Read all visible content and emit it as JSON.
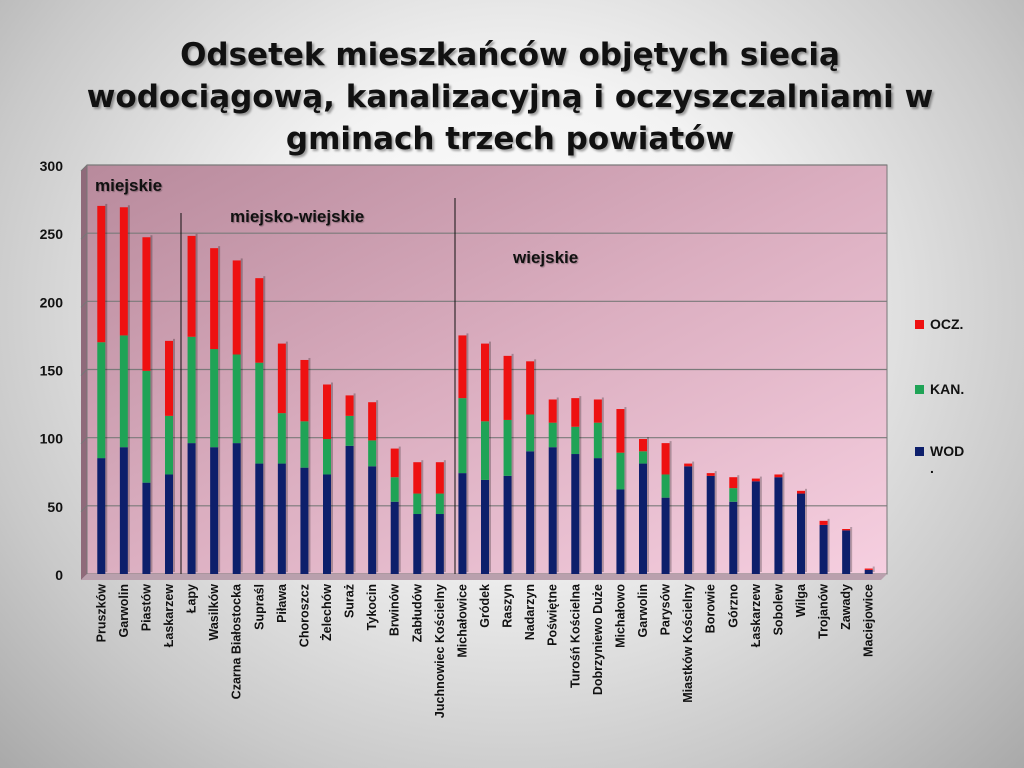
{
  "title": "Odsetek mieszkańców objętych siecią wodociągową, kanalizacyjną i oczyszczalniami w gminach trzech powiatów",
  "chart_data": {
    "type": "bar",
    "stacked": true,
    "categories": [
      "Pruszków",
      "Garwolin",
      "Piastów",
      "Łaskarzew",
      "Łapy",
      "Wasilków",
      "Czarna Białostocka",
      "Supraśl",
      "Piława",
      "Choroszcz",
      "Żelechów",
      "Suraż",
      "Tykocin",
      "Brwinów",
      "Zabłudów",
      "Juchnowiec Kościelny",
      "Michałowice",
      "Gródek",
      "Raszyn",
      "Nadarzyn",
      "Poświętne",
      "Turośń Kościelna",
      "Dobrzyniewo Duże",
      "Michałowo",
      "Garwolin",
      "Parysów",
      "Miastków Kościelny",
      "Borowie",
      "Górzno",
      "Łaskarzew",
      "Sobolew",
      "Wilga",
      "Trojanów",
      "Zawady",
      "Maciejowice"
    ],
    "series": [
      {
        "name": "WOD.",
        "color": "#0d1f6b",
        "values": [
          85,
          93,
          67,
          73,
          96,
          93,
          96,
          81,
          81,
          78,
          73,
          94,
          79,
          53,
          44,
          44,
          74,
          69,
          72,
          90,
          93,
          88,
          85,
          62,
          81,
          56,
          79,
          72,
          53,
          68,
          71,
          59,
          36,
          32,
          3
        ]
      },
      {
        "name": "KAN.",
        "color": "#1fa356",
        "values": [
          85,
          82,
          82,
          43,
          78,
          72,
          65,
          74,
          37,
          34,
          26,
          22,
          19,
          18,
          15,
          15,
          55,
          43,
          41,
          27,
          18,
          20,
          26,
          27,
          9,
          17,
          0,
          0,
          10,
          0,
          0,
          0,
          0,
          0,
          0
        ]
      },
      {
        "name": "OCZ.",
        "color": "#ee1111",
        "values": [
          100,
          94,
          98,
          55,
          74,
          74,
          69,
          62,
          51,
          45,
          40,
          15,
          28,
          21,
          23,
          23,
          46,
          57,
          47,
          39,
          17,
          21,
          17,
          32,
          9,
          23,
          2,
          2,
          8,
          2,
          2,
          2,
          3,
          1,
          1
        ]
      }
    ],
    "ylim": [
      0,
      300
    ],
    "yticks": [
      0,
      50,
      100,
      150,
      200,
      250,
      300
    ],
    "legend_position": "right",
    "grid": true,
    "annotations": [
      {
        "text": "miejskie"
      },
      {
        "text": "miejsko-wiejskie"
      },
      {
        "text": "wiejskie"
      }
    ]
  },
  "legend": [
    {
      "label": "OCZ.",
      "color": "#ee1111"
    },
    {
      "label": "KAN.",
      "color": "#1fa356"
    },
    {
      "label": "WOD\n.",
      "color": "#0d1f6b"
    }
  ]
}
